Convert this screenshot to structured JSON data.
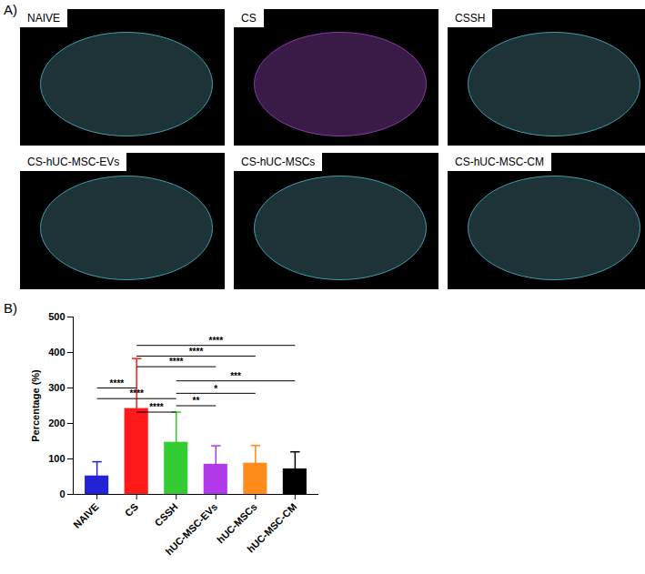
{
  "panel_a": {
    "label": "A)",
    "images": [
      "NAIVE",
      "CS",
      "CSSH",
      "CS-hUC-MSC-EVs",
      "CS-hUC-MSCs",
      "CS-hUC-MSC-CM"
    ]
  },
  "chart_data": {
    "type": "bar",
    "panel_label": "B)",
    "y_label": "Percentage (%)",
    "categories": [
      "NAIVE",
      "CS",
      "CSSH",
      "hUC-MSC-EVs",
      "hUC-MSCs",
      "hUC-MSC-CM"
    ],
    "values": [
      52,
      242,
      147,
      85,
      88,
      72
    ],
    "errors": [
      40,
      141,
      85,
      52,
      50,
      48
    ],
    "colors": [
      "#2323d6",
      "#ff1a1a",
      "#33cc33",
      "#b03ae8",
      "#ff8c1a",
      "#000000"
    ],
    "ylim": [
      0,
      500
    ],
    "yticks": [
      0,
      100,
      200,
      300,
      400,
      500
    ],
    "significance": [
      {
        "from": "CS",
        "to": "hUC-MSC-CM",
        "y": 420,
        "label": "****"
      },
      {
        "from": "CS",
        "to": "hUC-MSCs",
        "y": 390,
        "label": "****"
      },
      {
        "from": "CS",
        "to": "hUC-MSC-EVs",
        "y": 360,
        "label": "****"
      },
      {
        "from": "CSSH",
        "to": "hUC-MSC-CM",
        "y": 320,
        "label": "***"
      },
      {
        "from": "CSSH",
        "to": "hUC-MSCs",
        "y": 285,
        "label": "*"
      },
      {
        "from": "CSSH",
        "to": "hUC-MSC-EVs",
        "y": 250,
        "label": "**"
      },
      {
        "from": "NAIVE",
        "to": "CS",
        "y": 300,
        "label": "****"
      },
      {
        "from": "NAIVE",
        "to": "CSSH",
        "y": 270,
        "label": "****"
      },
      {
        "from": "CS",
        "to": "CSSH",
        "y": 232,
        "label": "****"
      }
    ]
  }
}
